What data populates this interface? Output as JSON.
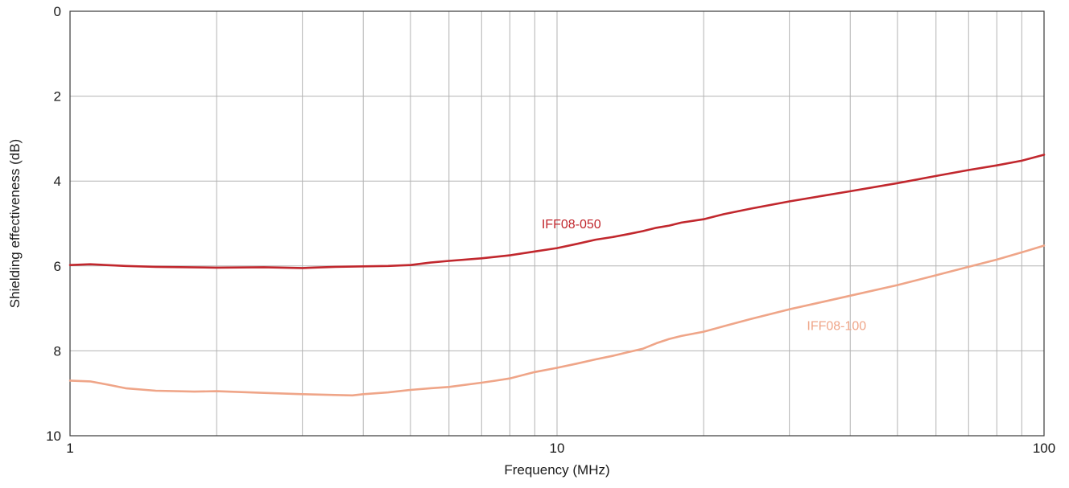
{
  "chart_data": {
    "type": "line",
    "title": "",
    "xlabel": "Frequency (MHz)",
    "ylabel": "Shielding effectiveness (dB)",
    "xscale": "log",
    "xlim": [
      1,
      100
    ],
    "ylim": [
      0,
      10
    ],
    "y_inverted": true,
    "grid": true,
    "legend": "inline labels",
    "x_ticks": [
      {
        "value": 1,
        "label": "1"
      },
      {
        "value": 10,
        "label": "10"
      },
      {
        "value": 100,
        "label": "100"
      }
    ],
    "y_ticks": [
      {
        "value": 0,
        "label": "0"
      },
      {
        "value": 2,
        "label": "2"
      },
      {
        "value": 4,
        "label": "4"
      },
      {
        "value": 6,
        "label": "6"
      },
      {
        "value": 8,
        "label": "8"
      },
      {
        "value": 10,
        "label": "10"
      }
    ],
    "series": [
      {
        "name": "IFF08-050",
        "color": "#c1272d",
        "label_at": [
          10.7,
          5.0
        ],
        "x": [
          1,
          1.1,
          1.3,
          1.5,
          2,
          2.5,
          3,
          3.5,
          4,
          4.5,
          5,
          5.5,
          6,
          7,
          8,
          9,
          10,
          11,
          12,
          13,
          14,
          15,
          16,
          17,
          18,
          20,
          22,
          25,
          30,
          35,
          40,
          50,
          60,
          70,
          80,
          90,
          100
        ],
        "values": [
          5.98,
          5.96,
          6.0,
          6.02,
          6.04,
          6.03,
          6.05,
          6.02,
          6.01,
          6.0,
          5.98,
          5.92,
          5.88,
          5.82,
          5.75,
          5.66,
          5.58,
          5.48,
          5.38,
          5.32,
          5.25,
          5.18,
          5.1,
          5.05,
          4.98,
          4.9,
          4.78,
          4.65,
          4.48,
          4.35,
          4.24,
          4.05,
          3.88,
          3.74,
          3.63,
          3.52,
          3.38
        ]
      },
      {
        "name": "IFF08-100",
        "color": "#efa588",
        "label_at": [
          37.5,
          7.4
        ],
        "x": [
          1,
          1.1,
          1.2,
          1.3,
          1.5,
          1.8,
          2,
          2.5,
          3,
          3.5,
          3.8,
          4,
          4.5,
          5,
          5.5,
          6,
          7,
          7.5,
          8,
          9,
          10,
          11,
          12,
          13,
          14,
          15,
          16,
          17,
          18,
          20,
          22,
          25,
          30,
          35,
          40,
          50,
          60,
          70,
          80,
          90,
          100
        ],
        "values": [
          8.7,
          8.72,
          8.8,
          8.88,
          8.94,
          8.96,
          8.95,
          8.99,
          9.02,
          9.04,
          9.05,
          9.02,
          8.98,
          8.92,
          8.88,
          8.85,
          8.75,
          8.7,
          8.65,
          8.5,
          8.4,
          8.3,
          8.2,
          8.12,
          8.03,
          7.95,
          7.82,
          7.72,
          7.65,
          7.55,
          7.42,
          7.25,
          7.02,
          6.85,
          6.7,
          6.45,
          6.22,
          6.02,
          5.85,
          5.68,
          5.52
        ]
      }
    ]
  }
}
